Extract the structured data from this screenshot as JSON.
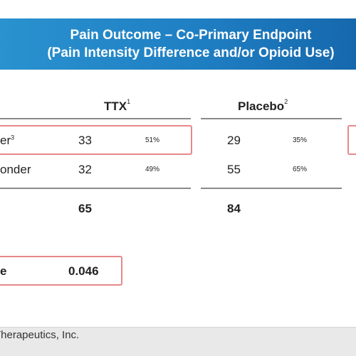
{
  "banner": {
    "line1": "Pain Outcome – Co-Primary Endpoint",
    "line2": "(Pain Intensity Difference and/or Opioid Use)"
  },
  "columns": {
    "ttx": {
      "label": "TTX",
      "note": "1"
    },
    "placebo": {
      "label": "Placebo",
      "note": "2"
    }
  },
  "rows": [
    {
      "label": "er",
      "note": "3",
      "ttx_n": "33",
      "ttx_pct": "51%",
      "placebo_n": "29",
      "placebo_pct": "35%"
    },
    {
      "label": "onder",
      "note": "",
      "ttx_n": "32",
      "ttx_pct": "49%",
      "placebo_n": "55",
      "placebo_pct": "65%"
    }
  ],
  "totals": {
    "ttx": "65",
    "placebo": "84"
  },
  "pvalue": {
    "label": "e",
    "value": "0.046"
  },
  "footer": {
    "text": "Therapeutics, Inc."
  },
  "colors": {
    "banner": "#1f7fc3",
    "highlight": "#e6888a",
    "rule": "#8a8a8a"
  }
}
